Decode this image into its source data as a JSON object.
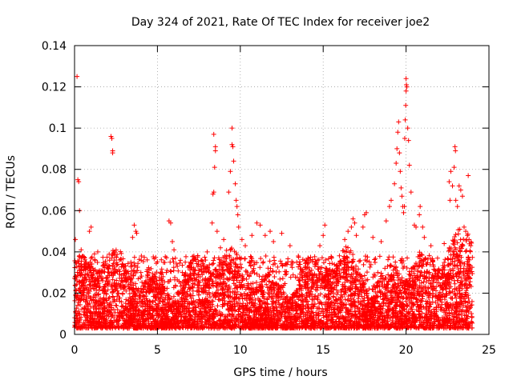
{
  "chart_data": {
    "type": "scatter",
    "title": "Day 324 of 2021, Rate Of TEC Index for receiver joe2",
    "xlabel": "GPS time / hours",
    "ylabel": "ROTI / TECUs",
    "xlim": [
      0,
      25
    ],
    "ylim": [
      0,
      0.14
    ],
    "xticks": [
      0,
      5,
      10,
      15,
      20,
      25
    ],
    "xtick_labels": [
      "0",
      "5",
      "10",
      "15",
      "20",
      "25"
    ],
    "yticks": [
      0,
      0.02,
      0.04,
      0.06,
      0.08,
      0.1,
      0.12,
      0.14
    ],
    "ytick_labels": [
      "0",
      "0.02",
      "0.04",
      "0.06",
      "0.08",
      "0.1",
      "0.12",
      "0.14"
    ],
    "grid": true,
    "marker": "+",
    "color": "#ff0000",
    "series": [
      {
        "name": "ROTI",
        "points": [
          [
            0.15,
            0.125
          ],
          [
            0.2,
            0.075
          ],
          [
            0.25,
            0.074
          ],
          [
            0.3,
            0.06
          ],
          [
            0.05,
            0.046
          ],
          [
            0.4,
            0.041
          ],
          [
            0.6,
            0.037
          ],
          [
            0.9,
            0.05
          ],
          [
            1.0,
            0.052
          ],
          [
            1.2,
            0.039
          ],
          [
            1.4,
            0.04
          ],
          [
            1.5,
            0.028
          ],
          [
            2.2,
            0.096
          ],
          [
            2.25,
            0.095
          ],
          [
            2.3,
            0.089
          ],
          [
            2.3,
            0.088
          ],
          [
            2.4,
            0.036
          ],
          [
            2.6,
            0.034
          ],
          [
            3.0,
            0.031
          ],
          [
            3.4,
            0.035
          ],
          [
            3.5,
            0.047
          ],
          [
            3.6,
            0.053
          ],
          [
            3.7,
            0.05
          ],
          [
            3.75,
            0.049
          ],
          [
            4.0,
            0.03
          ],
          [
            4.3,
            0.026
          ],
          [
            4.5,
            0.03
          ],
          [
            5.0,
            0.024
          ],
          [
            5.3,
            0.03
          ],
          [
            5.7,
            0.055
          ],
          [
            5.8,
            0.054
          ],
          [
            5.9,
            0.045
          ],
          [
            6.0,
            0.041
          ],
          [
            6.2,
            0.033
          ],
          [
            6.5,
            0.03
          ],
          [
            7.0,
            0.035
          ],
          [
            7.2,
            0.038
          ],
          [
            7.5,
            0.031
          ],
          [
            7.9,
            0.036
          ],
          [
            8.0,
            0.04
          ],
          [
            8.3,
            0.054
          ],
          [
            8.35,
            0.068
          ],
          [
            8.4,
            0.069
          ],
          [
            8.45,
            0.081
          ],
          [
            8.5,
            0.089
          ],
          [
            8.5,
            0.091
          ],
          [
            8.4,
            0.097
          ],
          [
            8.6,
            0.05
          ],
          [
            8.8,
            0.042
          ],
          [
            9.0,
            0.046
          ],
          [
            9.3,
            0.069
          ],
          [
            9.4,
            0.079
          ],
          [
            9.5,
            0.092
          ],
          [
            9.55,
            0.091
          ],
          [
            9.6,
            0.084
          ],
          [
            9.5,
            0.1
          ],
          [
            9.7,
            0.073
          ],
          [
            9.75,
            0.065
          ],
          [
            9.8,
            0.062
          ],
          [
            9.85,
            0.058
          ],
          [
            9.9,
            0.052
          ],
          [
            10.1,
            0.046
          ],
          [
            10.3,
            0.043
          ],
          [
            10.7,
            0.048
          ],
          [
            11.0,
            0.054
          ],
          [
            11.2,
            0.053
          ],
          [
            11.5,
            0.048
          ],
          [
            11.8,
            0.05
          ],
          [
            12.0,
            0.045
          ],
          [
            12.5,
            0.049
          ],
          [
            13.0,
            0.043
          ],
          [
            13.5,
            0.038
          ],
          [
            14.0,
            0.036
          ],
          [
            14.5,
            0.033
          ],
          [
            14.8,
            0.043
          ],
          [
            15.0,
            0.048
          ],
          [
            15.1,
            0.053
          ],
          [
            15.5,
            0.037
          ],
          [
            16.0,
            0.035
          ],
          [
            16.3,
            0.046
          ],
          [
            16.5,
            0.05
          ],
          [
            16.7,
            0.052
          ],
          [
            16.8,
            0.056
          ],
          [
            16.9,
            0.054
          ],
          [
            17.0,
            0.048
          ],
          [
            17.4,
            0.052
          ],
          [
            17.5,
            0.058
          ],
          [
            17.6,
            0.059
          ],
          [
            18.0,
            0.047
          ],
          [
            18.5,
            0.045
          ],
          [
            18.8,
            0.055
          ],
          [
            19.0,
            0.062
          ],
          [
            19.1,
            0.065
          ],
          [
            19.3,
            0.073
          ],
          [
            19.4,
            0.083
          ],
          [
            19.45,
            0.09
          ],
          [
            19.5,
            0.098
          ],
          [
            19.55,
            0.103
          ],
          [
            19.6,
            0.088
          ],
          [
            19.65,
            0.079
          ],
          [
            19.7,
            0.071
          ],
          [
            19.75,
            0.067
          ],
          [
            19.8,
            0.062
          ],
          [
            19.85,
            0.059
          ],
          [
            19.9,
            0.062
          ],
          [
            19.92,
            0.095
          ],
          [
            19.95,
            0.104
          ],
          [
            19.98,
            0.111
          ],
          [
            20.0,
            0.118
          ],
          [
            20.0,
            0.124
          ],
          [
            20.02,
            0.121
          ],
          [
            20.05,
            0.12
          ],
          [
            20.1,
            0.1
          ],
          [
            20.15,
            0.094
          ],
          [
            20.2,
            0.082
          ],
          [
            20.3,
            0.069
          ],
          [
            20.5,
            0.053
          ],
          [
            20.6,
            0.052
          ],
          [
            20.8,
            0.058
          ],
          [
            20.85,
            0.062
          ],
          [
            21.0,
            0.052
          ],
          [
            21.1,
            0.047
          ],
          [
            21.5,
            0.043
          ],
          [
            21.9,
            0.037
          ],
          [
            22.3,
            0.044
          ],
          [
            22.6,
            0.074
          ],
          [
            22.65,
            0.065
          ],
          [
            22.7,
            0.079
          ],
          [
            22.8,
            0.072
          ],
          [
            22.9,
            0.081
          ],
          [
            22.95,
            0.091
          ],
          [
            22.98,
            0.089
          ],
          [
            23.0,
            0.065
          ],
          [
            23.1,
            0.062
          ],
          [
            23.2,
            0.072
          ],
          [
            23.3,
            0.07
          ],
          [
            23.4,
            0.067
          ],
          [
            23.5,
            0.052
          ],
          [
            23.6,
            0.05
          ],
          [
            23.7,
            0.048
          ],
          [
            23.75,
            0.077
          ],
          [
            23.8,
            0.046
          ],
          [
            23.9,
            0.043
          ]
        ],
        "baseline_note": "Dense band of samples mostly between 0.003 and 0.03 across 0-24 h"
      }
    ]
  }
}
